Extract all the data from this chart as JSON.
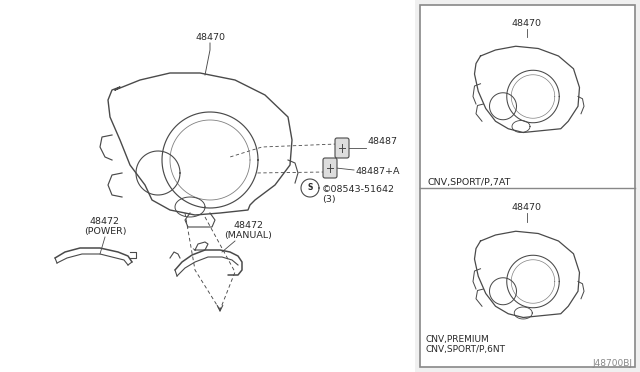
{
  "bg_color": "#f0f0f0",
  "white": "#ffffff",
  "line_color": "#4a4a4a",
  "text_color": "#2a2a2a",
  "diagram_id": "J48700BJ",
  "box_border": "#888888",
  "label_48470_main": "48470",
  "label_48487": "48487",
  "label_48487a": "48487+A",
  "label_circle": "©08543-51642\n(3)",
  "label_power": "48472\n(POWER)",
  "label_manual": "48472\n(MANUAL)",
  "label_cnv_sport": "CNV,SPORT/P,7AT",
  "label_cnv_premium": "CNV,PREMIUM\nCNV,SPORT/P,6NT",
  "label_48470_tr": "48470",
  "label_48470_br": "48470"
}
